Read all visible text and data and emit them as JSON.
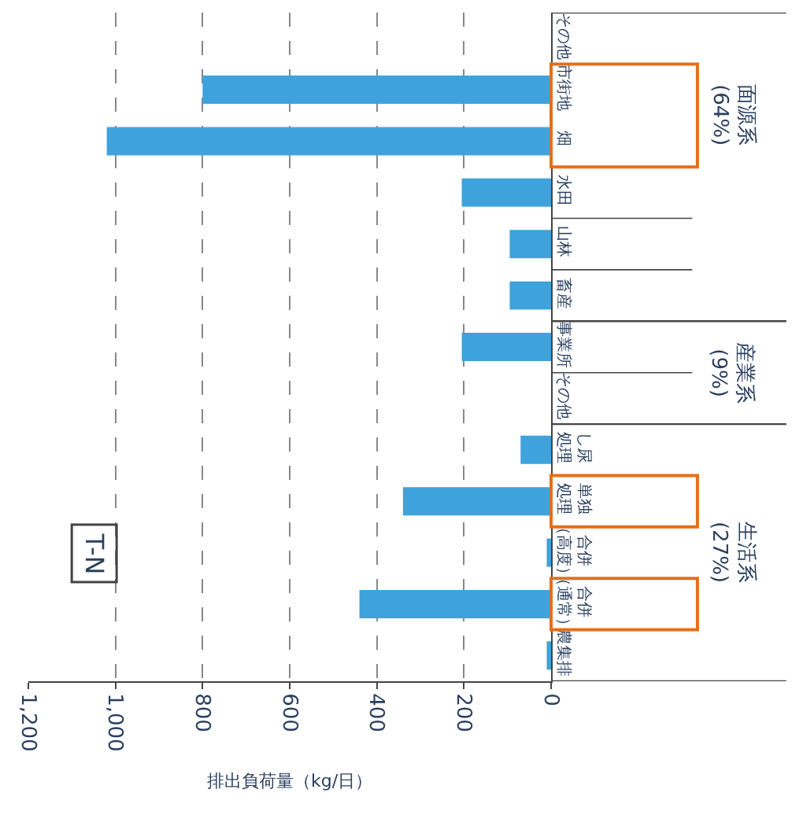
{
  "chart_data": {
    "type": "bar",
    "orientation": "horizontal",
    "xlabel": "排出負荷量（kg/日）",
    "categories": [
      "その他",
      "市街地",
      "畑",
      "水田",
      "山林",
      "畜産",
      "事業所",
      "その他",
      "し尿処理",
      "単独処理",
      "合併（高度）",
      "合併（通常）",
      "農集排"
    ],
    "values": [
      0,
      800,
      1020,
      205,
      95,
      95,
      205,
      0,
      70,
      340,
      10,
      440,
      10
    ],
    "color": "#3ea3dc",
    "xlim": [
      1200,
      0
    ],
    "xticks": [
      {
        "value": 1200,
        "label": "1,200"
      },
      {
        "value": 1000,
        "label": "1,000"
      },
      800,
      600,
      400,
      200,
      0
    ],
    "grid": "x",
    "legend": false,
    "annotations": [
      "面源系\n(64%)",
      "産業系\n(9%)",
      "生活系\n(27%)",
      "T-N"
    ]
  }
}
